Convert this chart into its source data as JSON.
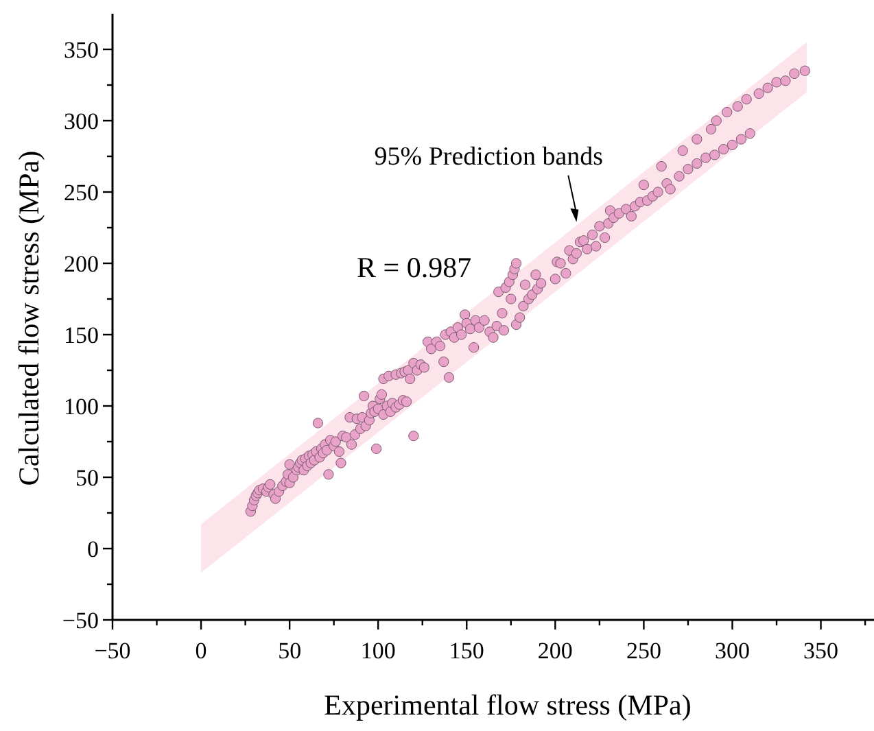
{
  "chart_data": {
    "type": "scatter",
    "xlabel": "Experimental flow stress (MPa)",
    "ylabel": "Calculated flow stress (MPa)",
    "xlim": [
      -50,
      380
    ],
    "ylim": [
      -50,
      375
    ],
    "xticks": [
      {
        "value": -50,
        "label": "−50"
      },
      {
        "value": -25,
        "label": null
      },
      0,
      {
        "value": 25,
        "label": null
      },
      50,
      {
        "value": 75,
        "label": null
      },
      100,
      {
        "value": 125,
        "label": null
      },
      150,
      {
        "value": 175,
        "label": null
      },
      200,
      {
        "value": 225,
        "label": null
      },
      250,
      {
        "value": 275,
        "label": null
      },
      300,
      {
        "value": 325,
        "label": null
      },
      350,
      {
        "value": 375,
        "label": null
      }
    ],
    "yticks": [
      {
        "value": -50,
        "label": "−50"
      },
      {
        "value": -25,
        "label": null
      },
      0,
      {
        "value": 25,
        "label": null
      },
      50,
      {
        "value": 75,
        "label": null
      },
      100,
      {
        "value": 125,
        "label": null
      },
      150,
      {
        "value": 175,
        "label": null
      },
      200,
      {
        "value": 225,
        "label": null
      },
      250,
      {
        "value": 275,
        "label": null
      },
      300,
      {
        "value": 325,
        "label": null
      },
      350
    ],
    "grid": false,
    "annotations": [
      {
        "text": "95% Prediction bands",
        "x": 212,
        "y": 229
      },
      "R = 0.987"
    ],
    "series": [
      {
        "type": "area",
        "color": "#fde4ea",
        "x": [
          0,
          342,
          342,
          0
        ],
        "values": [
          17,
          355,
          320,
          -17
        ]
      },
      {
        "color": "#eaa3c8",
        "marker": "circle",
        "x": [
          28,
          29,
          30,
          31,
          32,
          33,
          35,
          37,
          38,
          39,
          41,
          42,
          44,
          46,
          48,
          49,
          50,
          50,
          52,
          54,
          55,
          56,
          57,
          58,
          59,
          60,
          61,
          62,
          63,
          64,
          65,
          66,
          67,
          68,
          69,
          70,
          71,
          72,
          73,
          75,
          76,
          78,
          79,
          80,
          82,
          84,
          85,
          87,
          88,
          90,
          91,
          92,
          93,
          95,
          96,
          97,
          98,
          99,
          100,
          101,
          102,
          103,
          103,
          105,
          106,
          107,
          108,
          110,
          110,
          112,
          113,
          114,
          115,
          116,
          117,
          118,
          120,
          120,
          122,
          124,
          126,
          128,
          130,
          133,
          135,
          137,
          138,
          140,
          141,
          143,
          145,
          147,
          149,
          150,
          152,
          154,
          155,
          157,
          160,
          163,
          165,
          167,
          168,
          170,
          171,
          172,
          174,
          175,
          176,
          177,
          178,
          178,
          180,
          182,
          183,
          185,
          187,
          189,
          190,
          192,
          200,
          201,
          203,
          206,
          208,
          210,
          212,
          214,
          216,
          218,
          221,
          223,
          225,
          228,
          230,
          231,
          233,
          236,
          240,
          243,
          245,
          248,
          250,
          252,
          255,
          258,
          260,
          263,
          265,
          270,
          272,
          275,
          280,
          280,
          285,
          288,
          290,
          291,
          295,
          297,
          300,
          303,
          305,
          308,
          310,
          315,
          320,
          325,
          330,
          335,
          341
        ],
        "values": [
          26,
          30,
          34,
          37,
          39,
          41,
          42,
          40,
          43,
          45,
          38,
          35,
          40,
          44,
          47,
          52,
          46,
          59,
          50,
          55,
          57,
          60,
          62,
          55,
          63,
          58,
          65,
          60,
          66,
          62,
          68,
          88,
          64,
          70,
          67,
          73,
          69,
          52,
          76,
          72,
          75,
          68,
          60,
          79,
          78,
          92,
          73,
          80,
          91,
          84,
          92,
          107,
          86,
          90,
          95,
          100,
          96,
          70,
          98,
          105,
          108,
          94,
          119,
          100,
          121,
          96,
          102,
          122,
          99,
          101,
          123,
          104,
          124,
          103,
          125,
          119,
          79,
          130,
          125,
          129,
          127,
          145,
          140,
          145,
          142,
          131,
          150,
          120,
          152,
          148,
          155,
          150,
          164,
          158,
          154,
          141,
          160,
          155,
          160,
          152,
          148,
          156,
          180,
          165,
          153,
          183,
          187,
          175,
          192,
          196,
          200,
          157,
          162,
          170,
          185,
          175,
          178,
          192,
          182,
          186,
          189,
          201,
          200,
          193,
          209,
          203,
          207,
          215,
          216,
          210,
          220,
          212,
          226,
          218,
          228,
          237,
          232,
          235,
          238,
          233,
          240,
          243,
          255,
          244,
          247,
          250,
          268,
          256,
          252,
          261,
          279,
          266,
          270,
          287,
          274,
          294,
          276,
          300,
          280,
          306,
          283,
          310,
          287,
          315,
          291,
          319,
          323,
          327,
          328,
          333,
          335
        ]
      }
    ]
  }
}
